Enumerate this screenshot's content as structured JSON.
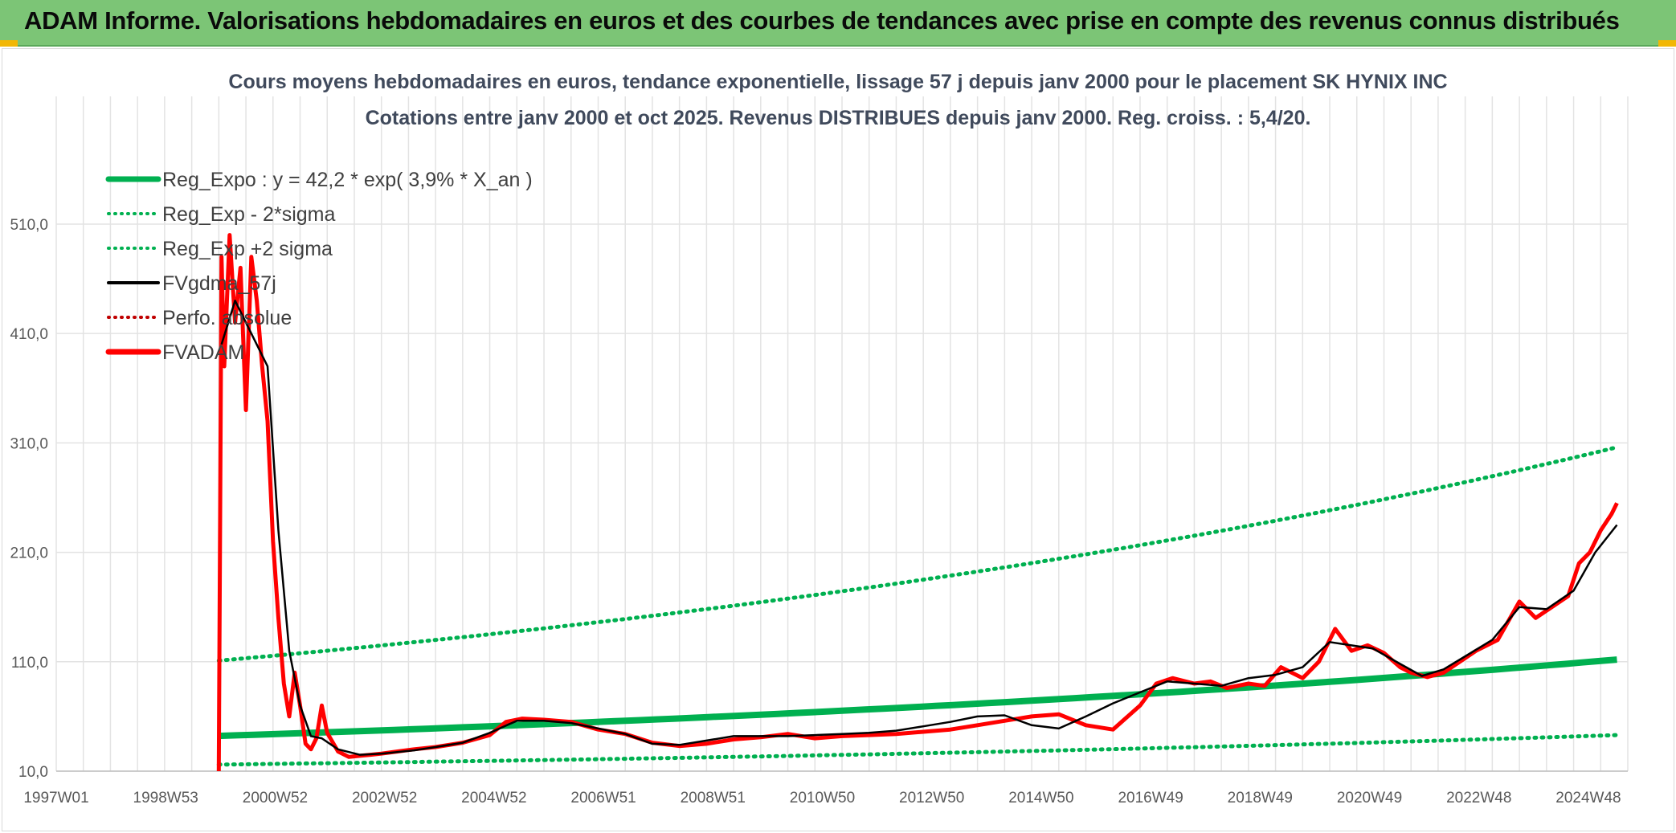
{
  "banner": {
    "title": "ADAM Informe. Valorisations hebdomadaires en euros et des courbes de tendances avec prise en compte des revenus connus distribués"
  },
  "colors": {
    "banner_bg": "#7cc576",
    "reg_green": "#00b050",
    "fvgdma_black": "#000000",
    "fvadam_red": "#ff0000",
    "grid": "#e3e3e3"
  },
  "chart_data": {
    "type": "line",
    "title_line1": "Cours moyens hebdomadaires en euros, tendance exponentielle, lissage 57 j depuis janv 2000 pour le placement SK HYNIX INC",
    "title_line2": "Cotations entre janv 2000 et oct 2025. Revenus DISTRIBUES depuis janv 2000. Reg. croiss. : 5,4/20.",
    "x_tick_labels": [
      "1997W01",
      "1998W53",
      "2000W52",
      "2002W52",
      "2004W52",
      "2006W51",
      "2008W51",
      "2010W50",
      "2012W50",
      "2014W50",
      "2016W49",
      "2018W49",
      "2020W49",
      "2022W48",
      "2024W48"
    ],
    "x_range": [
      1997.0,
      2026.0
    ],
    "y_tick_labels": [
      "10,0",
      "110,0",
      "210,0",
      "310,0",
      "410,0",
      "510,0"
    ],
    "y_ticks": [
      10,
      110,
      210,
      310,
      410,
      510
    ],
    "ylim": [
      10,
      590
    ],
    "legend": [
      {
        "label": "Reg_Expo : y = 42,2 * exp( 3,9% *  X_an )",
        "style": "solid-thick",
        "color": "#00b050"
      },
      {
        "label": "Reg_Exp - 2*sigma",
        "style": "dotted",
        "color": "#00b050"
      },
      {
        "label": "Reg_Exp +2 sigma",
        "style": "dotted",
        "color": "#00b050"
      },
      {
        "label": "FVgdma_57j",
        "style": "solid",
        "color": "#000000"
      },
      {
        "label": "Perfo. absolue",
        "style": "dotted",
        "color": "#c00000"
      },
      {
        "label": "FVADAM",
        "style": "solid-thick",
        "color": "#ff0000"
      }
    ],
    "regression": {
      "x_start": 2000.0,
      "x_end": 2025.8,
      "y_start": 42.2,
      "y_end": 112
    },
    "band_lower": {
      "x_start": 2000.0,
      "x_end": 2025.8,
      "y_start": 16,
      "y_end": 43
    },
    "band_upper": {
      "x_start": 2000.0,
      "x_end": 2025.8,
      "y_start": 111,
      "y_end": 306
    },
    "fvadam_series": {
      "x": [
        2000.0,
        2000.05,
        2000.1,
        2000.2,
        2000.3,
        2000.4,
        2000.5,
        2000.6,
        2000.7,
        2000.8,
        2000.9,
        2001.0,
        2001.1,
        2001.2,
        2001.3,
        2001.4,
        2001.5,
        2001.6,
        2001.7,
        2001.8,
        2001.9,
        2002.0,
        2002.2,
        2002.4,
        2002.6,
        2002.8,
        2003.0,
        2003.3,
        2003.6,
        2004.0,
        2004.5,
        2005.0,
        2005.3,
        2005.6,
        2006.0,
        2006.5,
        2007.0,
        2007.5,
        2008.0,
        2008.5,
        2009.0,
        2009.5,
        2010.0,
        2010.5,
        2011.0,
        2011.5,
        2012.0,
        2012.5,
        2013.0,
        2013.5,
        2014.0,
        2014.5,
        2015.0,
        2015.5,
        2016.0,
        2016.5,
        2017.0,
        2017.3,
        2017.6,
        2018.0,
        2018.3,
        2018.6,
        2019.0,
        2019.3,
        2019.6,
        2020.0,
        2020.3,
        2020.6,
        2020.9,
        2021.2,
        2021.5,
        2021.8,
        2022.0,
        2022.3,
        2022.6,
        2022.9,
        2023.2,
        2023.6,
        2024.0,
        2024.3,
        2024.6,
        2024.9,
        2025.1,
        2025.3,
        2025.5,
        2025.7,
        2025.8
      ],
      "y": [
        10,
        480,
        380,
        500,
        420,
        470,
        340,
        480,
        440,
        380,
        330,
        220,
        150,
        90,
        60,
        100,
        70,
        35,
        30,
        40,
        70,
        45,
        28,
        23,
        24,
        25,
        26,
        28,
        30,
        32,
        36,
        43,
        55,
        58,
        57,
        55,
        48,
        44,
        36,
        33,
        35,
        39,
        41,
        44,
        40,
        42,
        43,
        44,
        46,
        48,
        52,
        56,
        60,
        62,
        52,
        48,
        70,
        90,
        95,
        90,
        92,
        86,
        90,
        88,
        105,
        95,
        110,
        140,
        120,
        125,
        118,
        105,
        100,
        96,
        100,
        110,
        120,
        130,
        165,
        150,
        160,
        170,
        200,
        210,
        230,
        245,
        255
      ]
    },
    "fvgdma_series": {
      "x": [
        2000.05,
        2000.3,
        2000.6,
        2000.9,
        2001.1,
        2001.3,
        2001.5,
        2001.7,
        2001.9,
        2002.2,
        2002.6,
        2003.0,
        2003.6,
        2004.0,
        2004.5,
        2005.0,
        2005.5,
        2006.0,
        2006.5,
        2007.0,
        2007.5,
        2008.0,
        2008.5,
        2009.0,
        2009.5,
        2010.0,
        2010.5,
        2011.0,
        2011.5,
        2012.0,
        2012.5,
        2013.0,
        2013.5,
        2014.0,
        2014.5,
        2015.0,
        2015.5,
        2016.0,
        2016.5,
        2017.0,
        2017.5,
        2018.0,
        2018.5,
        2019.0,
        2019.5,
        2020.0,
        2020.5,
        2020.9,
        2021.3,
        2021.8,
        2022.2,
        2022.6,
        2023.0,
        2023.5,
        2024.0,
        2024.5,
        2025.0,
        2025.4,
        2025.8
      ],
      "y": [
        400,
        440,
        410,
        380,
        230,
        120,
        70,
        42,
        40,
        30,
        25,
        26,
        29,
        32,
        36,
        45,
        56,
        56,
        54,
        49,
        44,
        35,
        34,
        38,
        42,
        42,
        42,
        43,
        44,
        45,
        47,
        51,
        55,
        60,
        61,
        52,
        49,
        60,
        72,
        82,
        92,
        90,
        88,
        95,
        98,
        105,
        128,
        125,
        122,
        108,
        97,
        103,
        115,
        130,
        160,
        158,
        175,
        210,
        235
      ]
    }
  }
}
